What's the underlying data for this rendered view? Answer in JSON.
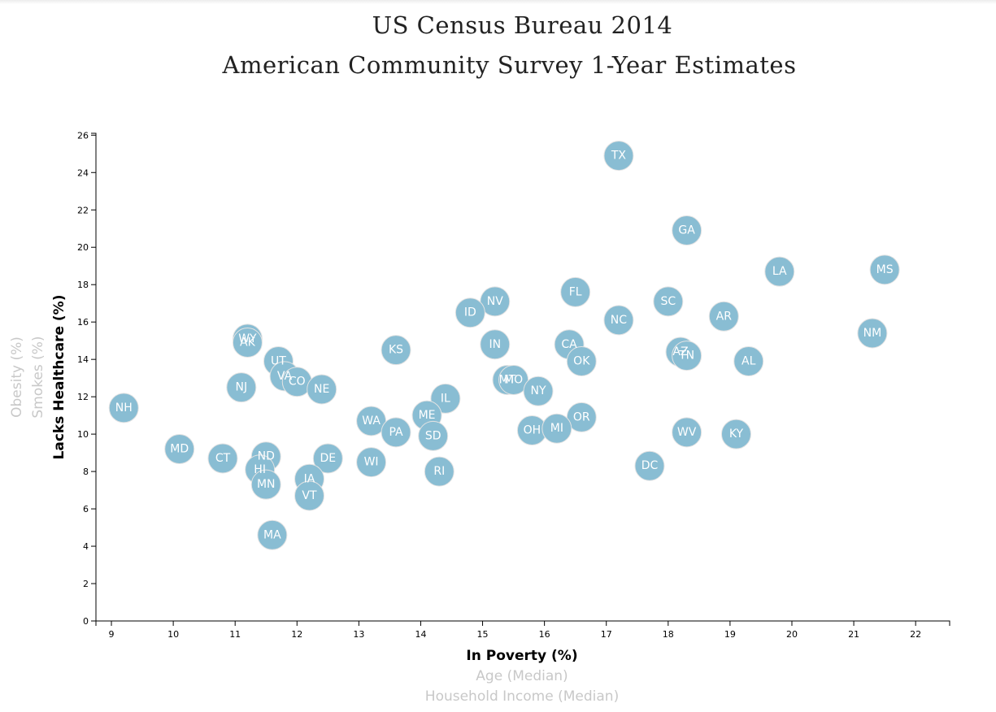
{
  "header": {
    "title_line1": "US Census Bureau 2014",
    "title_line2": "American Community Survey 1-Year Estimates"
  },
  "colors": {
    "circle_fill": "#89bdd3",
    "circle_stroke": "#e3e3e3",
    "circle_text": "#ffffff",
    "active_label": "#000000",
    "inactive_label": "#c8c8c8"
  },
  "chart_data": {
    "type": "scatter",
    "x_axis_options": [
      {
        "label": "In Poverty (%)",
        "active": true
      },
      {
        "label": "Age (Median)",
        "active": false
      },
      {
        "label": "Household Income (Median)",
        "active": false
      }
    ],
    "y_axis_options": [
      {
        "label": "Lacks Healthcare (%)",
        "active": true
      },
      {
        "label": "Smokes (%)",
        "active": false
      },
      {
        "label": "Obesity (%)",
        "active": false
      }
    ],
    "xlim": [
      8.75,
      22.55
    ],
    "ylim": [
      0,
      26.1
    ],
    "x_ticks": [
      9,
      10,
      11,
      12,
      13,
      14,
      15,
      16,
      17,
      18,
      19,
      20,
      21,
      22
    ],
    "y_ticks": [
      0,
      2,
      4,
      6,
      8,
      10,
      12,
      14,
      16,
      18,
      20,
      22,
      24,
      26
    ],
    "points": [
      {
        "abbr": "TX",
        "x": 17.2,
        "y": 24.9
      },
      {
        "abbr": "GA",
        "x": 18.3,
        "y": 20.9
      },
      {
        "abbr": "LA",
        "x": 19.8,
        "y": 18.7
      },
      {
        "abbr": "MS",
        "x": 21.5,
        "y": 18.8
      },
      {
        "abbr": "FL",
        "x": 16.5,
        "y": 17.6
      },
      {
        "abbr": "SC",
        "x": 18.0,
        "y": 17.1
      },
      {
        "abbr": "NV",
        "x": 15.2,
        "y": 17.1
      },
      {
        "abbr": "ID",
        "x": 14.8,
        "y": 16.5
      },
      {
        "abbr": "NC",
        "x": 17.2,
        "y": 16.1
      },
      {
        "abbr": "AR",
        "x": 18.9,
        "y": 16.3
      },
      {
        "abbr": "NM",
        "x": 21.3,
        "y": 15.4
      },
      {
        "abbr": "WY",
        "x": 11.2,
        "y": 15.1
      },
      {
        "abbr": "AK",
        "x": 11.2,
        "y": 14.9
      },
      {
        "abbr": "KS",
        "x": 13.6,
        "y": 14.5
      },
      {
        "abbr": "IN",
        "x": 15.2,
        "y": 14.8
      },
      {
        "abbr": "CA",
        "x": 16.4,
        "y": 14.8
      },
      {
        "abbr": "AZ",
        "x": 18.2,
        "y": 14.4
      },
      {
        "abbr": "TN",
        "x": 18.3,
        "y": 14.2
      },
      {
        "abbr": "OK",
        "x": 16.6,
        "y": 13.9
      },
      {
        "abbr": "AL",
        "x": 19.3,
        "y": 13.9
      },
      {
        "abbr": "UT",
        "x": 11.7,
        "y": 13.9
      },
      {
        "abbr": "VA",
        "x": 11.8,
        "y": 13.1
      },
      {
        "abbr": "CO",
        "x": 12.0,
        "y": 12.8
      },
      {
        "abbr": "NE",
        "x": 12.4,
        "y": 12.4
      },
      {
        "abbr": "NJ",
        "x": 11.1,
        "y": 12.5
      },
      {
        "abbr": "MT",
        "x": 15.4,
        "y": 12.9
      },
      {
        "abbr": "MO",
        "x": 15.5,
        "y": 12.9
      },
      {
        "abbr": "NY",
        "x": 15.9,
        "y": 12.3
      },
      {
        "abbr": "IL",
        "x": 14.4,
        "y": 11.9
      },
      {
        "abbr": "NH",
        "x": 9.2,
        "y": 11.4
      },
      {
        "abbr": "ME",
        "x": 14.1,
        "y": 11.0
      },
      {
        "abbr": "WA",
        "x": 13.2,
        "y": 10.7
      },
      {
        "abbr": "OR",
        "x": 16.6,
        "y": 10.9
      },
      {
        "abbr": "PA",
        "x": 13.6,
        "y": 10.1
      },
      {
        "abbr": "OH",
        "x": 15.8,
        "y": 10.2
      },
      {
        "abbr": "MI",
        "x": 16.2,
        "y": 10.3
      },
      {
        "abbr": "WV",
        "x": 18.3,
        "y": 10.1
      },
      {
        "abbr": "KY",
        "x": 19.1,
        "y": 10.0
      },
      {
        "abbr": "SD",
        "x": 14.2,
        "y": 9.9
      },
      {
        "abbr": "MD",
        "x": 10.1,
        "y": 9.2
      },
      {
        "abbr": "CT",
        "x": 10.8,
        "y": 8.7
      },
      {
        "abbr": "ND",
        "x": 11.5,
        "y": 8.8
      },
      {
        "abbr": "DE",
        "x": 12.5,
        "y": 8.7
      },
      {
        "abbr": "WI",
        "x": 13.2,
        "y": 8.5
      },
      {
        "abbr": "DC",
        "x": 17.7,
        "y": 8.3
      },
      {
        "abbr": "HI",
        "x": 11.4,
        "y": 8.1
      },
      {
        "abbr": "RI",
        "x": 14.3,
        "y": 8.0
      },
      {
        "abbr": "IA",
        "x": 12.2,
        "y": 7.6
      },
      {
        "abbr": "MN",
        "x": 11.5,
        "y": 7.3
      },
      {
        "abbr": "VT",
        "x": 12.2,
        "y": 6.7
      },
      {
        "abbr": "MA",
        "x": 11.6,
        "y": 4.6
      }
    ]
  }
}
